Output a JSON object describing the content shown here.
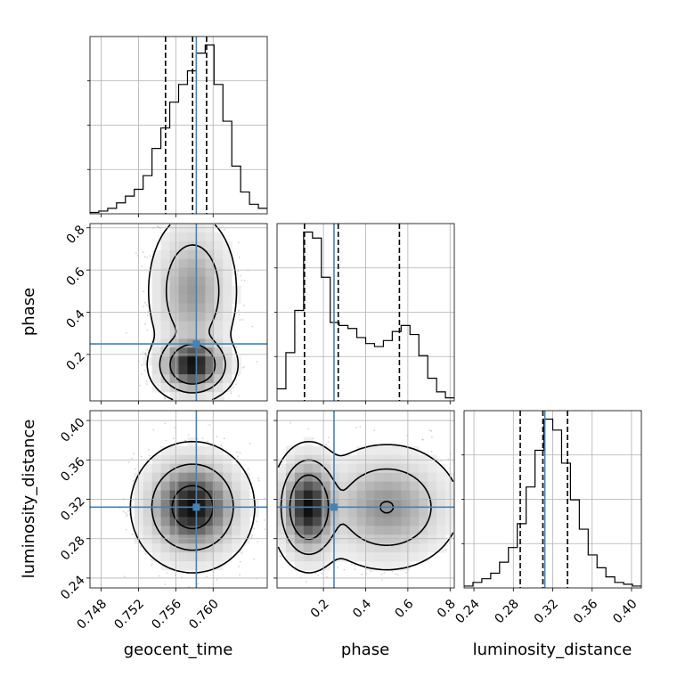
{
  "chart_data": {
    "type": "corner",
    "grid": true,
    "colors": {
      "truth": "#4682b4",
      "hist": "#000000",
      "quantile": "#000000",
      "scatter": "#808080"
    },
    "parameters": [
      {
        "name": "geocent_time",
        "label": "geocent_time",
        "range": [
          0.7468,
          0.7658
        ],
        "ticks": [
          0.748,
          0.752,
          0.756,
          0.76
        ],
        "tick_labels": [
          "0.748",
          "0.752",
          "0.756",
          "0.760"
        ],
        "truth": 0.7582,
        "quantiles": [
          0.7549,
          0.7578,
          0.7593
        ],
        "hist": {
          "edges_start": 0.7468,
          "bin_width": 0.00095,
          "counts": [
            1,
            2,
            4,
            8,
            13,
            18,
            28,
            48,
            63,
            82,
            95,
            105,
            118,
            124,
            95,
            68,
            35,
            16,
            7,
            4
          ]
        }
      },
      {
        "name": "phase",
        "label": "phase",
        "range": [
          -0.02,
          0.82
        ],
        "ticks": [
          0.2,
          0.4,
          0.6,
          0.8
        ],
        "tick_labels": [
          "0.2",
          "0.4",
          "0.6",
          "0.8"
        ],
        "truth": 0.25,
        "quantiles": [
          0.11,
          0.27,
          0.56
        ],
        "hist": {
          "edges_start": -0.02,
          "bin_width": 0.042,
          "counts": [
            8,
            32,
            60,
            112,
            108,
            82,
            52,
            50,
            48,
            42,
            38,
            36,
            40,
            46,
            50,
            44,
            30,
            15,
            6,
            2
          ]
        }
      },
      {
        "name": "luminosity_distance",
        "label": "luminosity_distance",
        "range": [
          0.23,
          0.41
        ],
        "ticks": [
          0.24,
          0.28,
          0.32,
          0.36,
          0.4
        ],
        "tick_labels": [
          "0.24",
          "0.28",
          "0.32",
          "0.36",
          "0.40"
        ],
        "truth": 0.312,
        "quantiles": [
          0.287,
          0.31,
          0.335
        ],
        "hist": {
          "edges_start": 0.23,
          "bin_width": 0.009,
          "counts": [
            1,
            3,
            5,
            8,
            14,
            22,
            35,
            55,
            75,
            92,
            86,
            68,
            48,
            32,
            18,
            11,
            6,
            3,
            2,
            1
          ]
        }
      }
    ],
    "contour_levels": [
      0.39,
      0.86,
      0.99,
      0.9999
    ],
    "density_models": {
      "geocent_time__phase": {
        "components": [
          {
            "weight": 0.55,
            "mean": [
              0.7578,
              0.15
            ],
            "sd": [
              0.0016,
              0.06
            ]
          },
          {
            "weight": 0.45,
            "mean": [
              0.7578,
              0.5
            ],
            "sd": [
              0.0018,
              0.14
            ]
          }
        ]
      },
      "geocent_time__luminosity_distance": {
        "components": [
          {
            "weight": 1.0,
            "mean": [
              0.7578,
              0.312
            ],
            "sd": [
              0.0022,
              0.022
            ]
          }
        ]
      },
      "phase__luminosity_distance": {
        "components": [
          {
            "weight": 0.55,
            "mean": [
              0.13,
              0.312
            ],
            "sd": [
              0.06,
              0.022
            ]
          },
          {
            "weight": 0.45,
            "mean": [
              0.5,
              0.312
            ],
            "sd": [
              0.13,
              0.024
            ]
          }
        ]
      }
    }
  }
}
